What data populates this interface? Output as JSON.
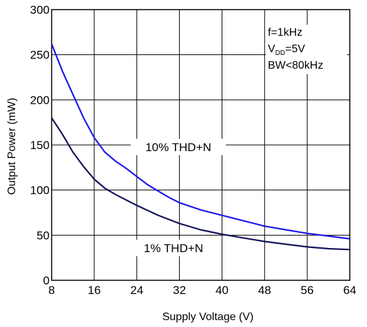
{
  "chart_data": {
    "type": "line",
    "title": "",
    "xlabel": "Supply Voltage (V)",
    "ylabel": "Output Power (mW)",
    "xlim": [
      8,
      64
    ],
    "ylim": [
      0,
      300
    ],
    "x_ticks": [
      8,
      16,
      24,
      32,
      40,
      48,
      56,
      64
    ],
    "y_ticks": [
      0,
      50,
      100,
      150,
      200,
      250,
      300
    ],
    "x_tick_labels": [
      "8",
      "16",
      "24",
      "32",
      "40",
      "48",
      "56",
      "64"
    ],
    "y_tick_labels": [
      "0",
      "50",
      "100",
      "150",
      "200",
      "250",
      "300"
    ],
    "grid": true,
    "legend": "none",
    "annotation": {
      "line1": "f=1kHz",
      "line2_main": "V",
      "line2_sub": "DD",
      "line2_rest": "=5V",
      "line3": "BW<80kHz"
    },
    "series": [
      {
        "name": "10% THD+N",
        "color": "#1a1ae6",
        "x": [
          8,
          10,
          12,
          14,
          16,
          18,
          20,
          22,
          24,
          26,
          28,
          30,
          32,
          36,
          40,
          44,
          48,
          52,
          56,
          60,
          64
        ],
        "y": [
          262,
          232,
          206,
          180,
          158,
          142,
          132,
          124,
          115,
          106,
          99,
          92,
          86,
          78,
          72,
          66,
          60,
          56,
          52,
          49,
          46
        ]
      },
      {
        "name": "1% THD+N",
        "color": "#14145a",
        "x": [
          8,
          10,
          12,
          14,
          16,
          18,
          20,
          24,
          28,
          32,
          36,
          40,
          44,
          48,
          52,
          56,
          60,
          64
        ],
        "y": [
          180,
          162,
          142,
          126,
          112,
          102,
          95,
          83,
          72,
          63,
          56,
          51,
          47,
          43,
          40,
          37,
          35,
          34
        ]
      }
    ]
  }
}
